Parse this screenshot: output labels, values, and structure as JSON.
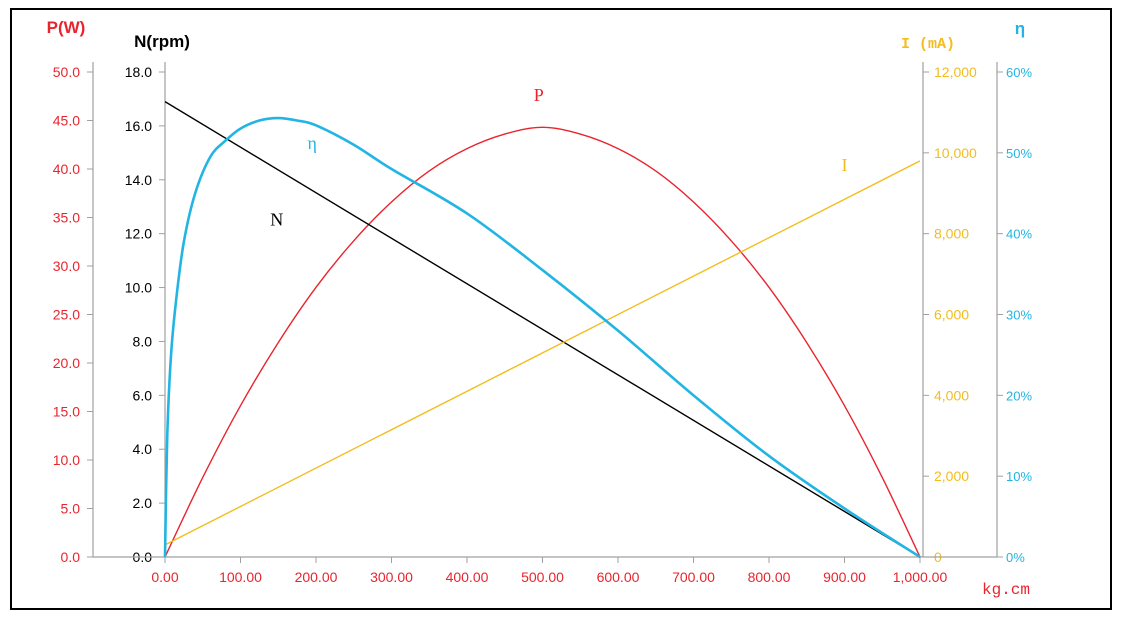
{
  "chart_data": {
    "type": "line",
    "x_unit_label": "kg.cm",
    "x_ticks": [
      "0.00",
      "100.00",
      "200.00",
      "300.00",
      "400.00",
      "500.00",
      "600.00",
      "700.00",
      "800.00",
      "900.00",
      "1,000.00"
    ],
    "xlim": [
      0,
      1000
    ],
    "axes": {
      "power": {
        "title": "P(W)",
        "color": "#e8252f",
        "ylim": [
          0,
          50
        ],
        "ticks": [
          "0.0",
          "5.0",
          "10.0",
          "15.0",
          "20.0",
          "25.0",
          "30.0",
          "35.0",
          "40.0",
          "45.0",
          "50.0"
        ]
      },
      "speed": {
        "title": "N(rpm)",
        "color": "#000000",
        "ylim": [
          0,
          18
        ],
        "ticks": [
          "0.0",
          "2.0",
          "4.0",
          "6.0",
          "8.0",
          "10.0",
          "12.0",
          "14.0",
          "16.0",
          "18.0"
        ]
      },
      "current": {
        "title": "I (mA)",
        "color": "#f2bd1f",
        "ylim": [
          0,
          12000
        ],
        "ticks": [
          "0",
          "2,000",
          "4,000",
          "6,000",
          "8,000",
          "10,000",
          "12,000"
        ]
      },
      "efficiency": {
        "title": "η",
        "color": "#22b5e3",
        "ylim": [
          0,
          60
        ],
        "ticks": [
          "0%",
          "10%",
          "20%",
          "30%",
          "40%",
          "50%",
          "60%"
        ]
      }
    },
    "series": [
      {
        "name": "P",
        "axis": "power",
        "color": "#e8252f",
        "x": [
          0,
          50,
          100,
          150,
          200,
          250,
          300,
          350,
          400,
          450,
          500,
          550,
          600,
          650,
          700,
          750,
          800,
          850,
          900,
          950,
          1000
        ],
        "values": [
          0,
          8.2,
          15.6,
          22.1,
          27.8,
          32.6,
          36.6,
          39.8,
          42.1,
          43.6,
          44.3,
          43.6,
          42.1,
          39.8,
          36.6,
          32.6,
          27.8,
          22.1,
          15.6,
          8.2,
          0
        ]
      },
      {
        "name": "N",
        "axis": "speed",
        "color": "#000000",
        "x": [
          0,
          1000
        ],
        "values": [
          16.9,
          0
        ]
      },
      {
        "name": "I",
        "axis": "current",
        "color": "#f2bd1f",
        "x": [
          0,
          1000
        ],
        "values": [
          300,
          9800
        ]
      },
      {
        "name": "η",
        "axis": "efficiency",
        "color": "#22b5e3",
        "x": [
          0,
          3,
          8,
          15,
          25,
          40,
          60,
          80,
          100,
          125,
          150,
          175,
          200,
          250,
          300,
          400,
          500,
          600,
          700,
          800,
          900,
          1000
        ],
        "values": [
          0,
          15,
          25,
          32,
          39,
          45,
          49.5,
          51.5,
          53,
          54,
          54.3,
          54,
          53.4,
          51,
          48,
          42.5,
          35.5,
          28,
          20,
          12.5,
          6,
          0
        ]
      }
    ],
    "curve_labels": [
      {
        "text": "P",
        "series": "P",
        "x": 495,
        "axis": "power",
        "y": 47
      },
      {
        "text": "η",
        "series": "η",
        "x": 195,
        "axis": "efficiency",
        "y": 50.5
      },
      {
        "text": "N",
        "series": "N",
        "x": 148,
        "axis": "speed",
        "y": 12.3
      },
      {
        "text": "I",
        "series": "I",
        "x": 900,
        "axis": "current",
        "y": 9550
      }
    ],
    "grid": false,
    "legend": "none"
  }
}
